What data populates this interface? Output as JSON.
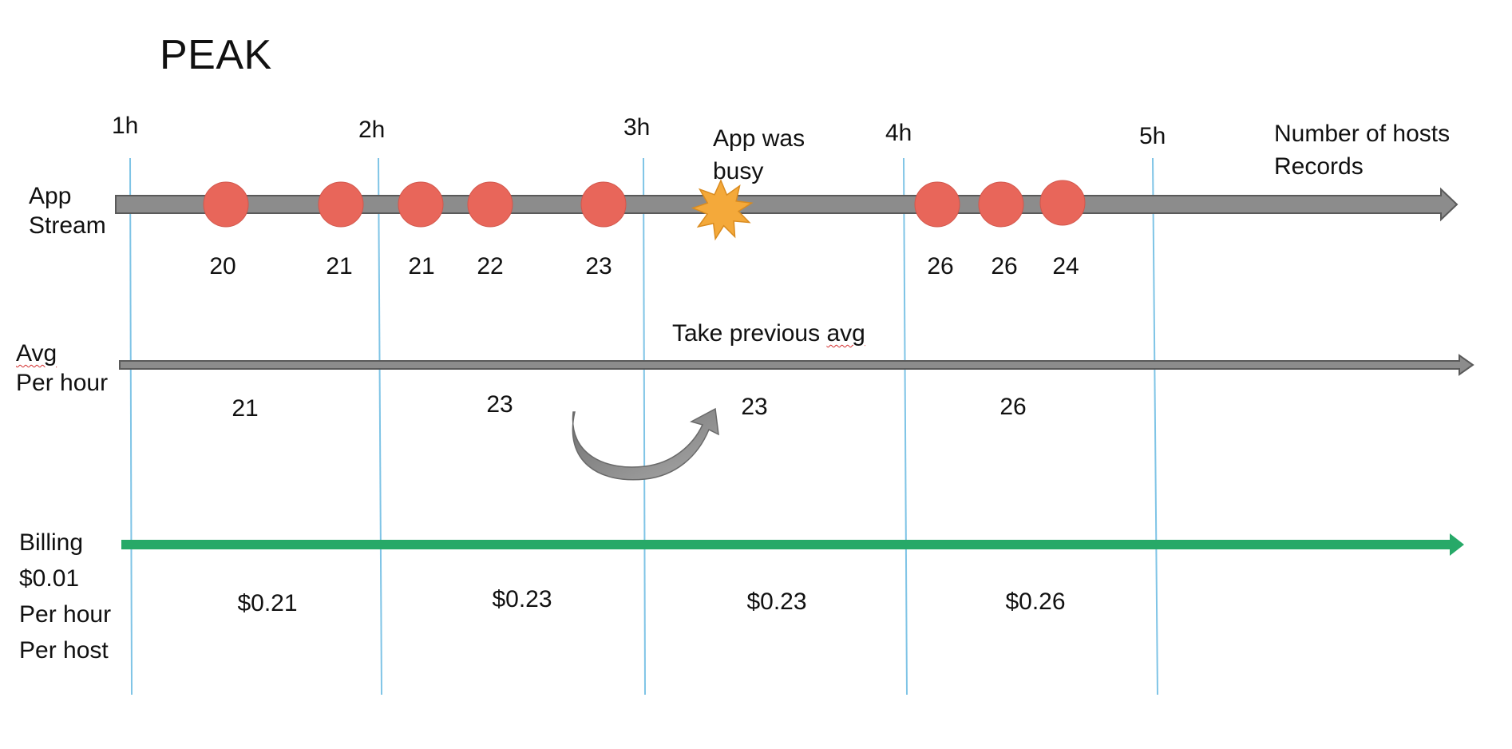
{
  "title": "PEAK",
  "hours": [
    "1h",
    "2h",
    "3h",
    "4h",
    "5h"
  ],
  "stream": {
    "label_line1": "App",
    "label_line2": "Stream",
    "record_values": [
      20,
      21,
      21,
      22,
      23,
      26,
      26,
      24
    ],
    "busy_note_line1": "App was",
    "busy_note_line2": "busy",
    "axis_note_line1": "Number of hosts",
    "axis_note_line2": "Records"
  },
  "average": {
    "label_line1": "Avg",
    "label_line2": "Per hour",
    "note_prefix": "Take previous ",
    "note_squiggle": "avg",
    "values": [
      21,
      23,
      23,
      26
    ]
  },
  "billing": {
    "label_line1": "Billing",
    "label_line2": "$0.01",
    "label_line3": "Per hour",
    "label_line4": "Per host",
    "values": [
      "$0.21",
      "$0.23",
      "$0.23",
      "$0.26"
    ]
  },
  "colors": {
    "timeline": "#8c8c8c",
    "timeline_stroke": "#5a5a5a",
    "record_dot": "#e8665a",
    "billing_line": "#27a968",
    "hour_divider": "#7fc4e6",
    "busy_star": "#f4a93a",
    "curve_arrow": "#8c8c8c"
  },
  "icons": {
    "busy": "starburst-icon",
    "carry_over": "curved-arrow-icon"
  }
}
